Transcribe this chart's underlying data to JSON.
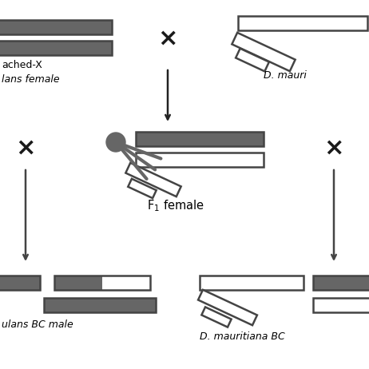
{
  "bg_color": "#ffffff",
  "dark_color": "#666666",
  "edge_color": "#444444",
  "black": "#1a1a1a",
  "top_left_label1": "ached-X",
  "top_left_label2": "lans female",
  "top_right_label": "D. mauri",
  "mid_label": "F$_1$ female",
  "bot_left_label": "ulans BC male",
  "bot_right_label": "D. mauritiana BC"
}
